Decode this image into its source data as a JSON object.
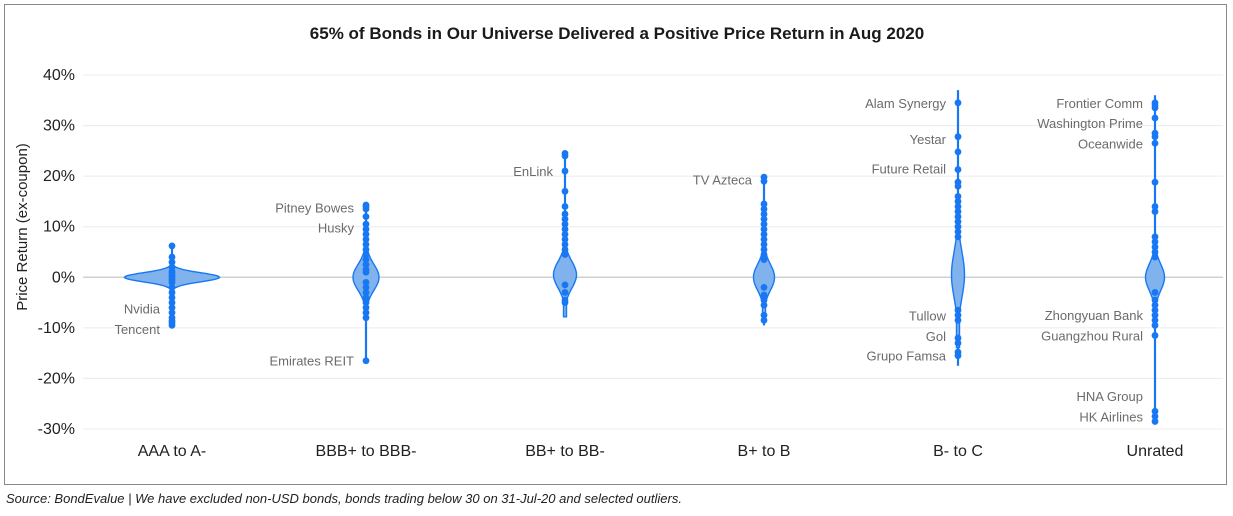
{
  "chart_data": {
    "type": "violin",
    "title": "65% of Bonds in Our Universe Delivered a Positive Price Return in Aug 2020",
    "ylabel": "Price Return (ex-coupon)",
    "xlabel": "",
    "ylim": [
      -30,
      40
    ],
    "yticks": [
      40,
      30,
      20,
      10,
      0,
      -10,
      -20,
      -30
    ],
    "ytick_labels": [
      "40%",
      "30%",
      "20%",
      "10%",
      "0%",
      "-10%",
      "-20%",
      "-30%"
    ],
    "grid": true,
    "color": "#1877f2",
    "fill_color": "#80b3ee",
    "categories": [
      "AAA to A-",
      "BBB+ to BBB-",
      "BB+ to BB-",
      "B+ to B",
      "B- to C",
      "Unrated"
    ],
    "series": [
      {
        "category": "AAA to A-",
        "min": -9.5,
        "max": 6.2,
        "median": 0.0,
        "spread_pct": 95,
        "points": [
          6.2,
          4.0,
          3.0,
          2.0,
          1.2,
          0.8,
          0.3,
          0,
          -0.5,
          -1.0,
          -2.0,
          -3.0,
          -4.0,
          -5.0,
          -6.0,
          -7.0,
          -8.0,
          -8.6,
          -9.0,
          -9.5
        ]
      },
      {
        "category": "BBB+ to BBB-",
        "min": -16.5,
        "max": 14.3,
        "median": 0.0,
        "spread_pct": 26,
        "points": [
          14.3,
          14.0,
          13.5,
          12.0,
          10.5,
          9.5,
          8.5,
          7.5,
          6.5,
          5.5,
          4.5,
          3.5,
          2.5,
          1.5,
          1,
          -1,
          -2,
          -3,
          -4,
          -5,
          -6,
          -7,
          -8,
          -16.5
        ]
      },
      {
        "category": "BB+ to BB-",
        "min": -5.2,
        "max": 24.8,
        "median": 0.5,
        "spread_pct": 23,
        "points": [
          24.5,
          24.0,
          21.0,
          17.0,
          14.0,
          12.5,
          11.5,
          10.5,
          9.5,
          8.5,
          7.5,
          6.5,
          5.5,
          4.5,
          -1.5,
          -3.0,
          -4.5,
          -5.0
        ]
      },
      {
        "category": "B+ to B",
        "min": -9.5,
        "max": 20.3,
        "median": 0.0,
        "spread_pct": 21,
        "points": [
          19.8,
          19.0,
          14.5,
          13.5,
          12.5,
          11.5,
          10.5,
          9.5,
          8.5,
          7.5,
          6.5,
          5.5,
          4.5,
          3.5,
          -2.0,
          -3.5,
          -4.5,
          -5.5,
          -7.5,
          -8.5
        ]
      },
      {
        "category": "B- to C",
        "min": -17.5,
        "max": 37.0,
        "median": 0.5,
        "spread_pct": 13,
        "points": [
          34.5,
          27.8,
          24.8,
          21.3,
          18.8,
          18.0,
          16.0,
          15.0,
          14.0,
          13.0,
          12.0,
          11.0,
          10.0,
          9.0,
          8.0,
          -6.5,
          -7.5,
          -8.5,
          -12.0,
          -13.0,
          -14.8,
          -15.5
        ]
      },
      {
        "category": "Unrated",
        "min": -29.0,
        "max": 36.0,
        "median": 0.0,
        "spread_pct": 19,
        "points": [
          34.5,
          34.0,
          33.5,
          31.5,
          28.5,
          27.8,
          26.5,
          18.8,
          14.0,
          13.0,
          8.0,
          7.0,
          6.0,
          5.0,
          4.0,
          -3.0,
          -4.5,
          -5.5,
          -6.5,
          -7.5,
          -8.5,
          -9.5,
          -11.5,
          -26.5,
          -27.5,
          -28.5
        ]
      }
    ],
    "annotations": [
      {
        "text": "Nvidia",
        "category": "AAA to A-",
        "y": -6.2,
        "side": "left"
      },
      {
        "text": "Tencent",
        "category": "AAA to A-",
        "y": -10.2,
        "side": "left"
      },
      {
        "text": "Pitney Bowes",
        "category": "BBB+ to BBB-",
        "y": 13.8,
        "side": "left"
      },
      {
        "text": "Husky",
        "category": "BBB+ to BBB-",
        "y": 9.8,
        "side": "left"
      },
      {
        "text": "Emirates REIT",
        "category": "BBB+ to BBB-",
        "y": -16.5,
        "side": "left"
      },
      {
        "text": "EnLink",
        "category": "BB+ to BB-",
        "y": 21.0,
        "side": "left"
      },
      {
        "text": "TV Azteca",
        "category": "B+ to B",
        "y": 19.3,
        "side": "left"
      },
      {
        "text": "Alam Synergy",
        "category": "B- to C",
        "y": 34.5,
        "side": "left"
      },
      {
        "text": "Yestar",
        "category": "B- to C",
        "y": 27.3,
        "side": "left"
      },
      {
        "text": "Future Retail",
        "category": "B- to C",
        "y": 21.5,
        "side": "left"
      },
      {
        "text": "Tullow",
        "category": "B- to C",
        "y": -7.6,
        "side": "left"
      },
      {
        "text": "Gol",
        "category": "B- to C",
        "y": -11.6,
        "side": "left"
      },
      {
        "text": "Grupo Famsa",
        "category": "B- to C",
        "y": -15.5,
        "side": "left"
      },
      {
        "text": "Frontier Comm",
        "category": "Unrated",
        "y": 34.5,
        "side": "left"
      },
      {
        "text": "Washington Prime",
        "category": "Unrated",
        "y": 30.5,
        "side": "left"
      },
      {
        "text": "Oceanwide",
        "category": "Unrated",
        "y": 26.5,
        "side": "left"
      },
      {
        "text": "Zhongyuan Bank",
        "category": "Unrated",
        "y": -7.5,
        "side": "left"
      },
      {
        "text": "Guangzhou Rural",
        "category": "Unrated",
        "y": -11.5,
        "side": "left"
      },
      {
        "text": "HNA Group",
        "category": "Unrated",
        "y": -23.5,
        "side": "left"
      },
      {
        "text": "HK Airlines",
        "category": "Unrated",
        "y": -27.5,
        "side": "left"
      }
    ]
  },
  "footer": {
    "source": "Source: BondEvalue | We have excluded non-USD bonds, bonds trading below 30 on 31-Jul-20 and selected outliers."
  }
}
